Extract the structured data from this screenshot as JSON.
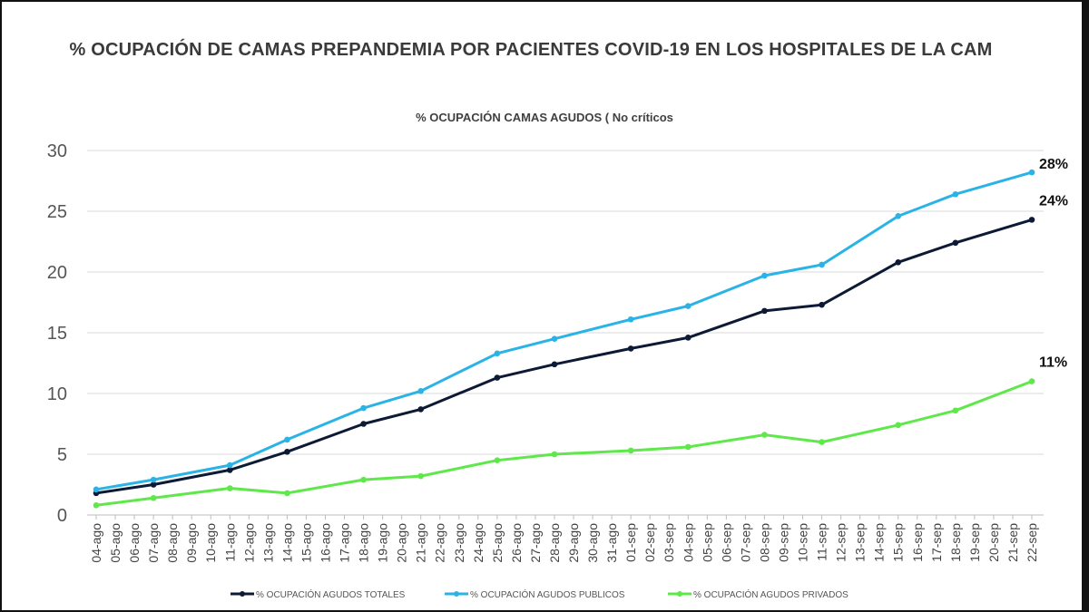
{
  "chart_data": {
    "type": "line",
    "title": "% OCUPACIÓN DE CAMAS PREPANDEMIA POR PACIENTES COVID-19 EN LOS HOSPITALES DE LA CAM",
    "subtitle": "%  OCUPACIÓN CAMAS AGUDOS ( No críticos",
    "ylim": [
      0,
      30
    ],
    "yticks": [
      0,
      5,
      10,
      15,
      20,
      25,
      30
    ],
    "grid": true,
    "legend_position": "bottom",
    "categories": [
      "04-ago",
      "05-ago",
      "06-ago",
      "07-ago",
      "08-ago",
      "09-ago",
      "10-ago",
      "11-ago",
      "12-ago",
      "13-ago",
      "14-ago",
      "15-ago",
      "16-ago",
      "17-ago",
      "18-ago",
      "19-ago",
      "20-ago",
      "21-ago",
      "22-ago",
      "23-ago",
      "24-ago",
      "25-ago",
      "26-ago",
      "27-ago",
      "28-ago",
      "29-ago",
      "30-ago",
      "31-ago",
      "01-sep",
      "02-sep",
      "03-sep",
      "04-sep",
      "05-sep",
      "06-sep",
      "07-sep",
      "08-sep",
      "09-sep",
      "10-sep",
      "11-sep",
      "12-sep",
      "13-sep",
      "14-sep",
      "15-sep",
      "16-sep",
      "17-sep",
      "18-sep",
      "19-sep",
      "20-sep",
      "21-sep",
      "22-sep"
    ],
    "series": [
      {
        "name": "% OCUPACIÓN AGUDOS TOTALES",
        "color": "#0d1a35",
        "points": [
          [
            "04-ago",
            1.8
          ],
          [
            "07-ago",
            2.5
          ],
          [
            "11-ago",
            3.7
          ],
          [
            "14-ago",
            5.2
          ],
          [
            "18-ago",
            7.5
          ],
          [
            "21-ago",
            8.7
          ],
          [
            "25-ago",
            11.3
          ],
          [
            "28-ago",
            12.4
          ],
          [
            "01-sep",
            13.7
          ],
          [
            "04-sep",
            14.6
          ],
          [
            "08-sep",
            16.8
          ],
          [
            "11-sep",
            17.3
          ],
          [
            "15-sep",
            20.8
          ],
          [
            "18-sep",
            22.4
          ],
          [
            "22-sep",
            24.3
          ]
        ]
      },
      {
        "name": "% OCUPACIÓN AGUDOS PUBLICOS",
        "color": "#2ab3e6",
        "points": [
          [
            "04-ago",
            2.1
          ],
          [
            "07-ago",
            2.9
          ],
          [
            "11-ago",
            4.1
          ],
          [
            "14-ago",
            6.2
          ],
          [
            "18-ago",
            8.8
          ],
          [
            "21-ago",
            10.2
          ],
          [
            "25-ago",
            13.3
          ],
          [
            "28-ago",
            14.5
          ],
          [
            "01-sep",
            16.1
          ],
          [
            "04-sep",
            17.2
          ],
          [
            "08-sep",
            19.7
          ],
          [
            "11-sep",
            20.6
          ],
          [
            "15-sep",
            24.6
          ],
          [
            "18-sep",
            26.4
          ],
          [
            "22-sep",
            28.2
          ]
        ]
      },
      {
        "name": "% OCUPACIÓN AGUDOS PRIVADOS",
        "color": "#5ee84a",
        "points": [
          [
            "04-ago",
            0.8
          ],
          [
            "07-ago",
            1.4
          ],
          [
            "11-ago",
            2.2
          ],
          [
            "14-ago",
            1.8
          ],
          [
            "18-ago",
            2.9
          ],
          [
            "21-ago",
            3.2
          ],
          [
            "25-ago",
            4.5
          ],
          [
            "28-ago",
            5.0
          ],
          [
            "01-sep",
            5.3
          ],
          [
            "04-sep",
            5.6
          ],
          [
            "08-sep",
            6.6
          ],
          [
            "11-sep",
            6.0
          ],
          [
            "15-sep",
            7.4
          ],
          [
            "18-sep",
            8.6
          ],
          [
            "22-sep",
            11.0
          ]
        ]
      }
    ],
    "annotations": [
      "28%",
      "24%",
      "11%"
    ]
  }
}
